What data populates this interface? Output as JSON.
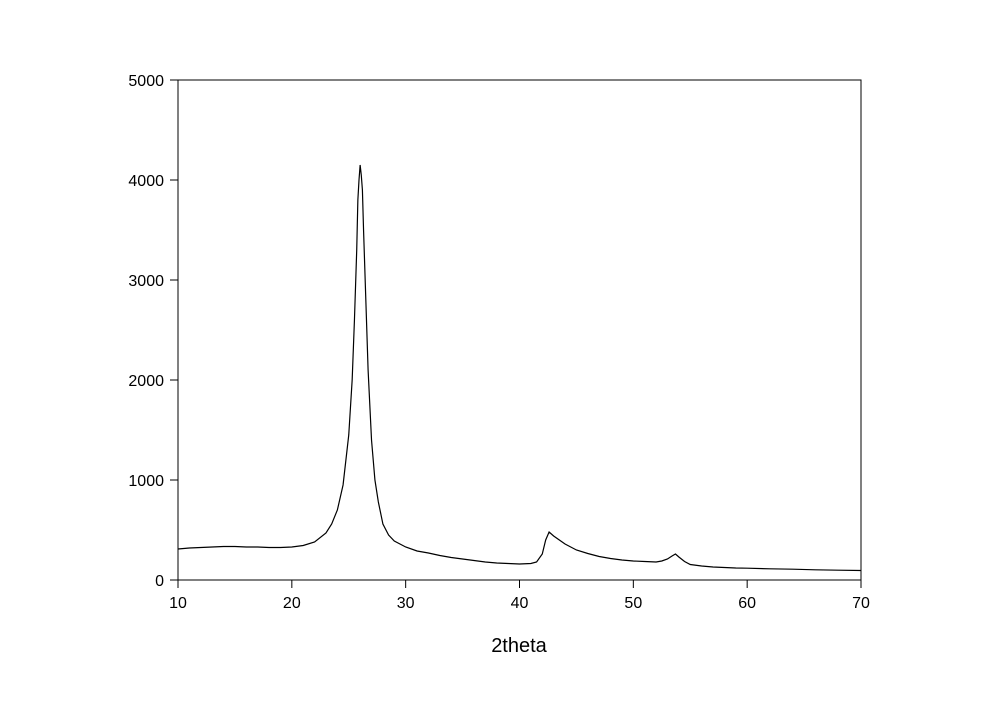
{
  "chart_data": {
    "type": "line",
    "xlabel": "2theta",
    "x": [
      10,
      11,
      12,
      13,
      14,
      15,
      16,
      17,
      18,
      19,
      20,
      21,
      22,
      23,
      23.5,
      24,
      24.5,
      25,
      25.3,
      25.5,
      25.7,
      25.8,
      25.9,
      26.0,
      26.1,
      26.2,
      26.3,
      26.5,
      26.7,
      27,
      27.3,
      27.6,
      28,
      28.5,
      29,
      30,
      31,
      32,
      33,
      34,
      35,
      36,
      37,
      38,
      39,
      40,
      41,
      41.5,
      42,
      42.3,
      42.6,
      43,
      43.5,
      44,
      45,
      46,
      47,
      48,
      49,
      50,
      51,
      52,
      52.5,
      53,
      53.4,
      53.7,
      54,
      54.5,
      55,
      56,
      57,
      58,
      59,
      60,
      62,
      64,
      66,
      68,
      70
    ],
    "series": [
      {
        "name": "2theta",
        "color": "#000000",
        "values": [
          310,
          320,
          325,
          330,
          335,
          335,
          330,
          330,
          325,
          325,
          330,
          345,
          380,
          470,
          560,
          700,
          950,
          1450,
          2000,
          2600,
          3300,
          3800,
          4000,
          4150,
          4050,
          3900,
          3500,
          2800,
          2100,
          1400,
          1000,
          780,
          560,
          450,
          390,
          330,
          290,
          270,
          245,
          225,
          210,
          195,
          180,
          170,
          165,
          160,
          165,
          180,
          260,
          400,
          480,
          440,
          400,
          360,
          300,
          265,
          235,
          215,
          200,
          190,
          185,
          180,
          190,
          210,
          240,
          260,
          230,
          185,
          155,
          140,
          130,
          125,
          120,
          118,
          112,
          108,
          102,
          98,
          95
        ]
      }
    ],
    "xlim": [
      10,
      70
    ],
    "xticks": [
      10,
      20,
      30,
      40,
      50,
      60,
      70
    ],
    "ylim": [
      0,
      5000
    ],
    "yticks": [
      0,
      1000,
      2000,
      3000,
      4000,
      5000
    ]
  }
}
